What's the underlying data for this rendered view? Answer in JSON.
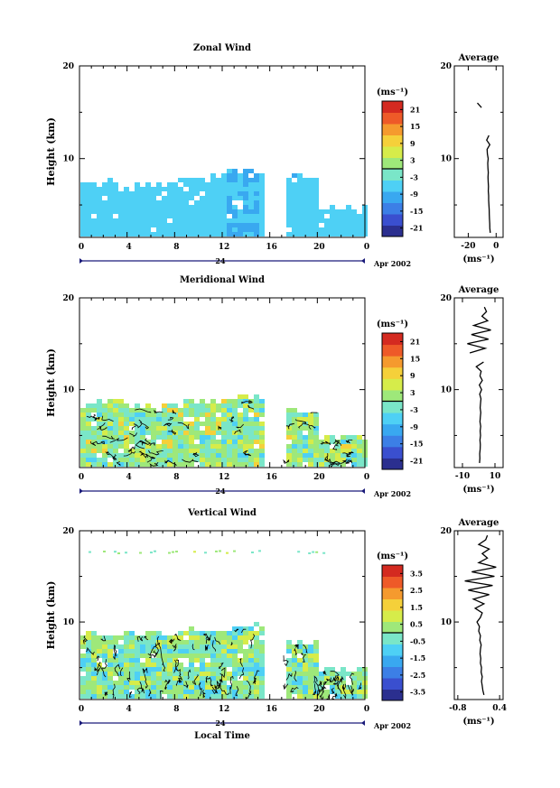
{
  "chart_data": [
    {
      "type": "heatmap",
      "title": "Zonal Wind",
      "ylabel": "Height (km)",
      "xlabel": "",
      "xlim": [
        0,
        24
      ],
      "ylim": [
        1.5,
        20
      ],
      "x_ticks": [
        "0",
        "4",
        "8",
        "12",
        "16",
        "20",
        "0"
      ],
      "y_ticks": [
        "10",
        "20"
      ],
      "date_day": "24",
      "date_label": "Apr 2002",
      "data_gap_hours": [
        15.3,
        17.1
      ],
      "coverage": [
        {
          "x_start": 0,
          "x_end": 4,
          "top_km": 7.2
        },
        {
          "x_start": 4,
          "x_end": 8,
          "top_km": 7.0
        },
        {
          "x_start": 8,
          "x_end": 12,
          "top_km": 7.6
        },
        {
          "x_start": 12,
          "x_end": 15.3,
          "top_km": 8.6
        },
        {
          "x_start": 17.1,
          "x_end": 20,
          "top_km": 7.6
        },
        {
          "x_start": 20,
          "x_end": 24,
          "top_km": 4.5
        }
      ],
      "colorbar": {
        "unit": "(ms⁻¹)",
        "tick_labels": [
          "21",
          "15",
          "9",
          "3",
          "-3",
          "-9",
          "-15",
          "-21"
        ],
        "range": [
          -24,
          24
        ]
      },
      "profile": {
        "title": "Average",
        "xlabel": "(ms⁻¹)",
        "x_ticks": [
          "-20",
          "0"
        ],
        "xlim": [
          -30,
          5
        ],
        "y_ticks": [
          "10",
          "20"
        ],
        "height_km": [
          2,
          2.5,
          3,
          3.5,
          4,
          4.5,
          5,
          5.5,
          6,
          6.5,
          7,
          7.5,
          8,
          8.5,
          9,
          9.5,
          10,
          10.5,
          11,
          11.5,
          12,
          12.5,
          13,
          13.5,
          14,
          14.5,
          15,
          15.5,
          16
        ],
        "value_ms": [
          -4.2,
          -4.5,
          -4.6,
          -4.8,
          -4.9,
          -5.0,
          -5.2,
          -5.4,
          -5.4,
          -5.6,
          -5.5,
          -5.7,
          -5.8,
          -5.6,
          -5.9,
          -6.0,
          -5.7,
          -6.3,
          -6.5,
          -4.5,
          -6.8,
          -5.2,
          null,
          null,
          null,
          null,
          null,
          -10.5,
          -13.5
        ]
      }
    },
    {
      "type": "heatmap",
      "title": "Meridional Wind",
      "ylabel": "Height (km)",
      "xlabel": "",
      "xlim": [
        0,
        24
      ],
      "ylim": [
        1.5,
        20
      ],
      "x_ticks": [
        "0",
        "4",
        "8",
        "12",
        "16",
        "20",
        "0"
      ],
      "y_ticks": [
        "10",
        "20"
      ],
      "date_day": "24",
      "date_label": "Apr 2002",
      "data_gap_hours": [
        15.3,
        17.1
      ],
      "coverage": [
        {
          "x_start": 0,
          "x_end": 4,
          "top_km": 8.3
        },
        {
          "x_start": 4,
          "x_end": 8,
          "top_km": 8.0
        },
        {
          "x_start": 8,
          "x_end": 12,
          "top_km": 8.4
        },
        {
          "x_start": 12,
          "x_end": 15.3,
          "top_km": 8.8
        },
        {
          "x_start": 17.1,
          "x_end": 20,
          "top_km": 7.5
        },
        {
          "x_start": 20,
          "x_end": 24,
          "top_km": 4.5
        }
      ],
      "colorbar": {
        "unit": "(ms⁻¹)",
        "tick_labels": [
          "21",
          "15",
          "9",
          "3",
          "-3",
          "-9",
          "-15",
          "-21"
        ],
        "range": [
          -24,
          24
        ]
      },
      "profile": {
        "title": "Average",
        "xlabel": "(ms⁻¹)",
        "x_ticks": [
          "-10",
          "10"
        ],
        "xlim": [
          -15,
          15
        ],
        "y_ticks": [
          "10",
          "20"
        ],
        "height_km": [
          2,
          2.5,
          3,
          3.5,
          4,
          4.5,
          5,
          5.5,
          6,
          6.5,
          7,
          7.5,
          8,
          8.5,
          9,
          9.5,
          10,
          10.5,
          11,
          11.5,
          12,
          12.5,
          13,
          13.5,
          14,
          14.5,
          15,
          15.5,
          16,
          16.5,
          17,
          17.5,
          18,
          18.5,
          19
        ],
        "value_ms": [
          0.5,
          0.7,
          0.6,
          0.9,
          1.0,
          0.8,
          1.1,
          0.9,
          1.2,
          0.8,
          1.0,
          1.3,
          0.9,
          1.1,
          1.4,
          0.6,
          1.8,
          0.4,
          2.2,
          0.8,
          1.5,
          -1.5,
          3.0,
          null,
          -5.5,
          4.0,
          -7.0,
          6.0,
          -4.5,
          7.5,
          -3.0,
          5.5,
          2.0,
          4.8,
          3.5
        ]
      }
    },
    {
      "type": "heatmap",
      "title": "Vertical Wind",
      "ylabel": "Height (km)",
      "xlabel": "Local Time",
      "xlim": [
        0,
        24
      ],
      "ylim": [
        1.5,
        20
      ],
      "x_ticks": [
        "0",
        "4",
        "8",
        "12",
        "16",
        "20",
        "0"
      ],
      "y_ticks": [
        "10",
        "20"
      ],
      "date_day": "24",
      "date_label": "Apr 2002",
      "data_gap_hours": [
        15.3,
        17.1
      ],
      "coverage": [
        {
          "x_start": 0,
          "x_end": 4,
          "top_km": 8.5
        },
        {
          "x_start": 4,
          "x_end": 8,
          "top_km": 8.4
        },
        {
          "x_start": 8,
          "x_end": 12,
          "top_km": 8.7
        },
        {
          "x_start": 12,
          "x_end": 15.3,
          "top_km": 9.2
        },
        {
          "x_start": 17.1,
          "x_end": 20,
          "top_km": 7.5
        },
        {
          "x_start": 20,
          "x_end": 24,
          "top_km": 4.6
        }
      ],
      "colorbar": {
        "unit": "(ms⁻¹)",
        "tick_labels": [
          "3.5",
          "2.5",
          "1.5",
          "0.5",
          "-0.5",
          "-1.5",
          "-2.5",
          "-3.5"
        ],
        "range": [
          -4,
          4
        ]
      },
      "profile": {
        "title": "Average",
        "xlabel": "(ms⁻¹)",
        "x_ticks": [
          "-0.8",
          "0.4"
        ],
        "xlim": [
          -0.9,
          0.5
        ],
        "y_ticks": [
          "10",
          "20"
        ],
        "height_km": [
          2,
          2.5,
          3,
          3.5,
          4,
          4.5,
          5,
          5.5,
          6,
          6.5,
          7,
          7.5,
          8,
          8.5,
          9,
          9.5,
          10,
          10.5,
          11,
          11.5,
          12,
          12.5,
          13,
          13.5,
          14,
          14.5,
          15,
          15.5,
          16,
          16.5,
          17,
          17.5,
          18,
          18.5,
          19,
          19.5
        ],
        "value_ms": [
          -0.05,
          -0.08,
          -0.1,
          -0.12,
          -0.1,
          -0.13,
          -0.12,
          -0.15,
          -0.14,
          -0.16,
          -0.15,
          -0.13,
          -0.17,
          -0.15,
          -0.2,
          -0.18,
          -0.25,
          -0.15,
          -0.1,
          -0.3,
          -0.05,
          -0.35,
          0.1,
          -0.5,
          0.2,
          -0.6,
          0.25,
          -0.4,
          0.3,
          -0.2,
          0.05,
          -0.1,
          0.1,
          -0.2,
          0.0,
          0.05
        ]
      }
    }
  ]
}
